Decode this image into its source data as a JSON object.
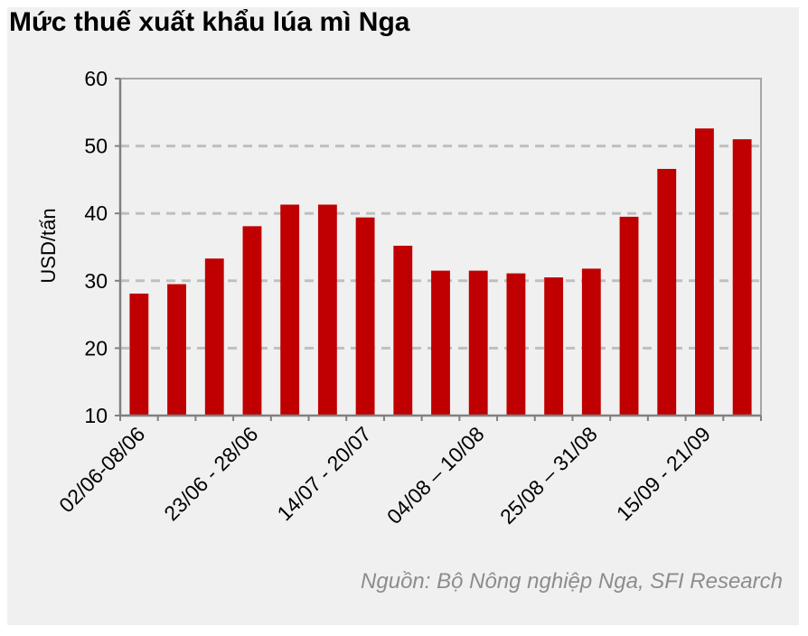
{
  "chart_data": {
    "type": "bar",
    "title": "Mức thuế xuất khẩu lúa mì Nga",
    "ylabel": "USD/tấn",
    "xlabel": "",
    "source": "Nguồn: Bộ Nông nghiệp Nga, SFI Research",
    "ylim": [
      10,
      60
    ],
    "yticks": [
      10,
      20,
      30,
      40,
      50,
      60
    ],
    "grid": true,
    "bar_color": "#c00000",
    "x_tick_labels": [
      "02/06-08/06",
      "23/06 - 28/06",
      "14/07 - 20/07",
      "04/08 – 10/08",
      "25/08 – 31/08",
      "15/09 - 21/09"
    ],
    "x_tick_positions": [
      0,
      3,
      6,
      9,
      12,
      15
    ],
    "values": [
      28.1,
      29.5,
      33.3,
      38.1,
      41.3,
      41.3,
      39.4,
      35.2,
      31.5,
      31.5,
      31.1,
      30.5,
      31.8,
      39.5,
      46.6,
      52.6,
      51.0
    ]
  }
}
